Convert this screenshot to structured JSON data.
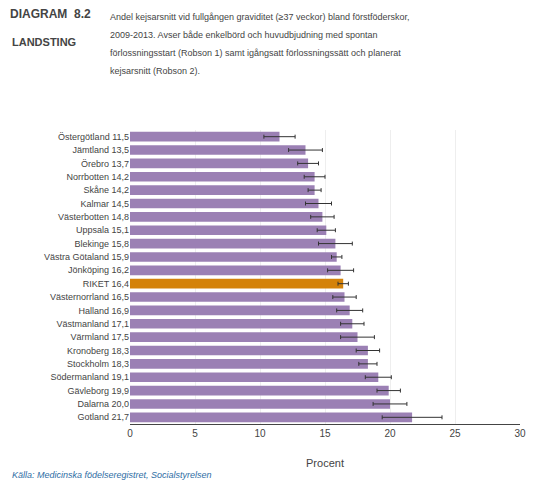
{
  "chart_data": {
    "type": "bar",
    "orientation": "horizontal",
    "title": "DIAGRAM  8.2",
    "subtitle": "LANDSTING",
    "annotations": [
      "Andel kejsarsnitt vid fullgången graviditet (≥37 veckor) bland förstföderskor,",
      "2009-2013. Avser både enkelbörd och huvudbjudning med spontan",
      "förlossningsstart (Robson 1) samt igångsatt förlossningssätt och planerat",
      "kejsarsnitt (Robson 2).",
      "Källa: Medicinska födelseregistret, Socialstyrelsen"
    ],
    "xlabel": "Procent",
    "categories": [
      "Östergötland 11,5",
      "Jämtland 13,5",
      "Örebro 13,7",
      "Norrbotten 14,2",
      "Skåne 14,2",
      "Kalmar 14,5",
      "Västerbotten 14,8",
      "Uppsala 15,1",
      "Blekinge 15,8",
      "Västra Götaland 15,9",
      "Jönköping 16,2",
      "RIKET 16,4",
      "Västernorrland 16,5",
      "Halland 16,9",
      "Västmanland 17,1",
      "Värmland 17,5",
      "Kronoberg 18,3",
      "Stockholm 18,3",
      "Södermanland 19,1",
      "Gävleborg 19,9",
      "Dalarna 20,0",
      "Gotland 21,7"
    ],
    "values": [
      11.5,
      13.5,
      13.7,
      14.2,
      14.2,
      14.5,
      14.8,
      15.1,
      15.8,
      15.9,
      16.2,
      16.4,
      16.5,
      16.9,
      17.1,
      17.5,
      18.3,
      18.3,
      19.1,
      19.9,
      20.0,
      21.7
    ],
    "error_bars": [
      1.2,
      1.3,
      0.8,
      0.8,
      0.5,
      1.0,
      0.9,
      0.7,
      1.3,
      0.4,
      1.0,
      0.4,
      0.9,
      1.0,
      0.9,
      1.3,
      0.9,
      0.7,
      1.0,
      0.9,
      1.3,
      2.3
    ],
    "colors": [
      "#9b80b4",
      "#9b80b4",
      "#9b80b4",
      "#9b80b4",
      "#9b80b4",
      "#9b80b4",
      "#9b80b4",
      "#9b80b4",
      "#9b80b4",
      "#9b80b4",
      "#9b80b4",
      "#d4820a",
      "#9b80b4",
      "#9b80b4",
      "#9b80b4",
      "#9b80b4",
      "#9b80b4",
      "#9b80b4",
      "#9b80b4",
      "#9b80b4",
      "#9b80b4",
      "#9b80b4"
    ],
    "xlim": [
      0,
      30
    ],
    "xticks": [
      0,
      5,
      10,
      15,
      20,
      25,
      30
    ],
    "grid": true
  }
}
